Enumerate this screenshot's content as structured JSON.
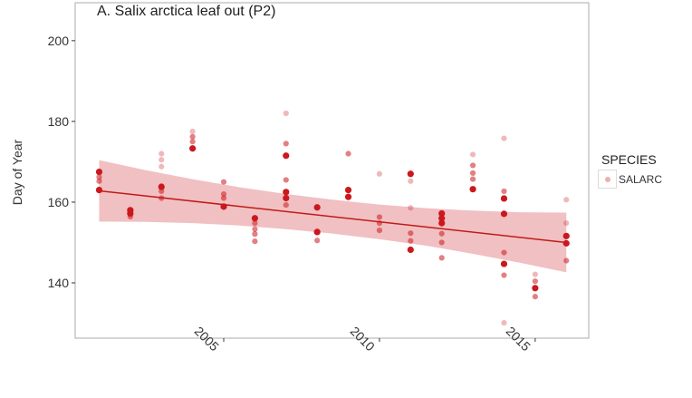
{
  "title": "A. Salix arctica leaf out (P2)",
  "y_axis": {
    "label": "Day of Year"
  },
  "legend": {
    "title": "SPECIES",
    "item_label": "SALARC"
  },
  "colors": {
    "point": "#cb181d",
    "trend_line": "#c01b18",
    "ci_band": "#cb181d",
    "panel_border": "#ababab",
    "tick": "#333333",
    "text": "#333333",
    "title_text": "#1f1f1f"
  },
  "chart_data": {
    "type": "scatter",
    "title": "A. Salix arctica leaf out (P2)",
    "xlabel": "",
    "ylabel": "Day of Year",
    "xlim": [
      2000.23,
      2016.72
    ],
    "ylim": [
      126.3,
      209.4
    ],
    "x_ticks": [
      2005,
      2010,
      2015
    ],
    "x_tick_labels": [
      "2005",
      "2010",
      "2015"
    ],
    "y_ticks": [
      200,
      180,
      160,
      140
    ],
    "y_tick_labels": [
      "200",
      "180",
      "160",
      "140"
    ],
    "grid": "off",
    "legend_position": "right",
    "legend": {
      "title": "SPECIES",
      "entries": [
        "SALARC"
      ]
    },
    "series_name": "SALARC",
    "point_shades": {
      "l": 0.3,
      "m": 0.55,
      "d": 1.0
    },
    "points": [
      {
        "year": 2001,
        "doy": 167.5,
        "shade": "d"
      },
      {
        "year": 2001,
        "doy": 166.2,
        "shade": "m"
      },
      {
        "year": 2001,
        "doy": 165.2,
        "shade": "m"
      },
      {
        "year": 2001,
        "doy": 163.0,
        "shade": "d"
      },
      {
        "year": 2002,
        "doy": 158.0,
        "shade": "d"
      },
      {
        "year": 2002,
        "doy": 157.2,
        "shade": "d"
      },
      {
        "year": 2002,
        "doy": 156.4,
        "shade": "m"
      },
      {
        "year": 2003,
        "doy": 172.0,
        "shade": "l"
      },
      {
        "year": 2003,
        "doy": 170.5,
        "shade": "l"
      },
      {
        "year": 2003,
        "doy": 168.8,
        "shade": "l"
      },
      {
        "year": 2003,
        "doy": 163.8,
        "shade": "d"
      },
      {
        "year": 2003,
        "doy": 162.7,
        "shade": "m"
      },
      {
        "year": 2003,
        "doy": 161.0,
        "shade": "m"
      },
      {
        "year": 2004,
        "doy": 177.5,
        "shade": "l"
      },
      {
        "year": 2004,
        "doy": 176.2,
        "shade": "m"
      },
      {
        "year": 2004,
        "doy": 175.0,
        "shade": "m"
      },
      {
        "year": 2004,
        "doy": 173.3,
        "shade": "d"
      },
      {
        "year": 2005,
        "doy": 165.0,
        "shade": "m"
      },
      {
        "year": 2005,
        "doy": 162.0,
        "shade": "m"
      },
      {
        "year": 2005,
        "doy": 161.0,
        "shade": "m"
      },
      {
        "year": 2005,
        "doy": 158.9,
        "shade": "d"
      },
      {
        "year": 2006,
        "doy": 156.0,
        "shade": "d"
      },
      {
        "year": 2006,
        "doy": 154.8,
        "shade": "m"
      },
      {
        "year": 2006,
        "doy": 153.3,
        "shade": "m"
      },
      {
        "year": 2006,
        "doy": 152.1,
        "shade": "m"
      },
      {
        "year": 2006,
        "doy": 150.3,
        "shade": "m"
      },
      {
        "year": 2007,
        "doy": 182.0,
        "shade": "l"
      },
      {
        "year": 2007,
        "doy": 174.5,
        "shade": "m"
      },
      {
        "year": 2007,
        "doy": 171.5,
        "shade": "d"
      },
      {
        "year": 2007,
        "doy": 165.5,
        "shade": "m"
      },
      {
        "year": 2007,
        "doy": 162.5,
        "shade": "d"
      },
      {
        "year": 2007,
        "doy": 161.0,
        "shade": "d"
      },
      {
        "year": 2007,
        "doy": 159.3,
        "shade": "m"
      },
      {
        "year": 2008,
        "doy": 158.7,
        "shade": "d"
      },
      {
        "year": 2008,
        "doy": 152.6,
        "shade": "d"
      },
      {
        "year": 2008,
        "doy": 150.5,
        "shade": "m"
      },
      {
        "year": 2009,
        "doy": 172.0,
        "shade": "m"
      },
      {
        "year": 2009,
        "doy": 163.0,
        "shade": "d"
      },
      {
        "year": 2009,
        "doy": 161.3,
        "shade": "d"
      },
      {
        "year": 2010,
        "doy": 167.0,
        "shade": "l"
      },
      {
        "year": 2010,
        "doy": 156.3,
        "shade": "m"
      },
      {
        "year": 2010,
        "doy": 154.8,
        "shade": "m"
      },
      {
        "year": 2010,
        "doy": 153.0,
        "shade": "m"
      },
      {
        "year": 2011,
        "doy": 167.0,
        "shade": "d"
      },
      {
        "year": 2011,
        "doy": 165.2,
        "shade": "l"
      },
      {
        "year": 2011,
        "doy": 158.6,
        "shade": "l"
      },
      {
        "year": 2011,
        "doy": 152.3,
        "shade": "m"
      },
      {
        "year": 2011,
        "doy": 150.4,
        "shade": "m"
      },
      {
        "year": 2011,
        "doy": 148.2,
        "shade": "d"
      },
      {
        "year": 2012,
        "doy": 157.2,
        "shade": "d"
      },
      {
        "year": 2012,
        "doy": 156.0,
        "shade": "d"
      },
      {
        "year": 2012,
        "doy": 154.8,
        "shade": "d"
      },
      {
        "year": 2012,
        "doy": 152.2,
        "shade": "m"
      },
      {
        "year": 2012,
        "doy": 150.0,
        "shade": "m"
      },
      {
        "year": 2012,
        "doy": 146.2,
        "shade": "m"
      },
      {
        "year": 2013,
        "doy": 171.8,
        "shade": "l"
      },
      {
        "year": 2013,
        "doy": 169.1,
        "shade": "m"
      },
      {
        "year": 2013,
        "doy": 167.2,
        "shade": "m"
      },
      {
        "year": 2013,
        "doy": 165.7,
        "shade": "m"
      },
      {
        "year": 2013,
        "doy": 163.2,
        "shade": "d"
      },
      {
        "year": 2014,
        "doy": 175.8,
        "shade": "l"
      },
      {
        "year": 2014,
        "doy": 162.7,
        "shade": "m"
      },
      {
        "year": 2014,
        "doy": 160.9,
        "shade": "d"
      },
      {
        "year": 2014,
        "doy": 157.1,
        "shade": "d"
      },
      {
        "year": 2014,
        "doy": 147.5,
        "shade": "m"
      },
      {
        "year": 2014,
        "doy": 144.7,
        "shade": "d"
      },
      {
        "year": 2014,
        "doy": 141.9,
        "shade": "m"
      },
      {
        "year": 2014,
        "doy": 130.1,
        "shade": "l"
      },
      {
        "year": 2015,
        "doy": 142.1,
        "shade": "l"
      },
      {
        "year": 2015,
        "doy": 140.4,
        "shade": "m"
      },
      {
        "year": 2015,
        "doy": 138.7,
        "shade": "d"
      },
      {
        "year": 2015,
        "doy": 136.6,
        "shade": "m"
      },
      {
        "year": 2016,
        "doy": 160.6,
        "shade": "l"
      },
      {
        "year": 2016,
        "doy": 154.8,
        "shade": "l"
      },
      {
        "year": 2016,
        "doy": 151.6,
        "shade": "d"
      },
      {
        "year": 2016,
        "doy": 149.8,
        "shade": "d"
      },
      {
        "year": 2016,
        "doy": 145.5,
        "shade": "m"
      }
    ],
    "trend": {
      "x": [
        2001,
        2016
      ],
      "y": [
        162.8,
        150.0
      ]
    },
    "ci_band": {
      "x": [
        2001,
        2002.5,
        2004,
        2005.5,
        2007,
        2008.5,
        2010,
        2011.5,
        2013,
        2014.5,
        2016
      ],
      "upper": [
        170.4,
        167.9,
        165.7,
        163.7,
        162.0,
        160.6,
        159.4,
        158.5,
        157.9,
        157.5,
        157.4
      ],
      "lower": [
        155.2,
        155.1,
        154.8,
        154.2,
        153.3,
        152.2,
        150.8,
        149.2,
        147.2,
        145.0,
        142.6
      ]
    }
  }
}
